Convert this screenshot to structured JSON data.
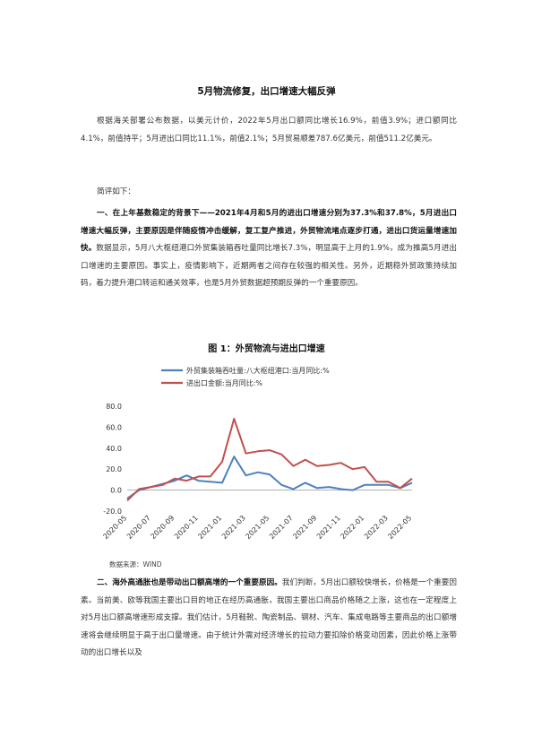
{
  "title": "5月物流修复，出口增速大幅反弹",
  "para1": "根据海关部署公布数据，以美元计价，2022年5月出口额同比增长16.9%，前值3.9%；进口额同比4.1%，前值持平；5月进出口同比11.1%，前值2.1%；5月贸易顺差787.6亿美元，前值511.2亿美元。",
  "para2": "简评如下：",
  "para3_bold": "一、在上年基数稳定的背景下——2021年4月和5月的进出口增速分别为37.3%和37.8%，5月进出口增速大幅反弹，主要原因是伴随疫情冲击缓解，复工复产推进，外贸物流堵点逐步打通，进出口货运量增速加快。",
  "para3_rest": "数据显示，5月八大枢纽港口外贸集装箱吞吐量同比增长7.3%，明显高于上月的1.9%，成为推高5月进出口增速的主要原因。事实上，疫情影响下，近期两者之间存在较强的相关性。另外，近期稳外贸政策持续加码，着力提升港口转运和通关效率，也是5月外贸数据超预期反弹的一个重要原因。",
  "figure_title": "图 1：外贸物流与进出口增速",
  "source": "数据来源：WIND",
  "para4_bold": "二、海外高通胀也是带动出口额高增的一个重要原因。",
  "para4_rest": "我们判断，5月出口额较快增长，价格是一个重要因素。当前美、欧等我国主要出口目的地正在经历高通胀，我国主要出口商品价格随之上涨，这也在一定程度上对5月出口额高增速形成支撑。我们估计，5月鞋靴、陶瓷制品、钢材、汽车、集成电路等主要商品的出口额增速将会继续明显于高于出口量增速。由于统计外需对经济增长的拉动力要扣除价格变动因素，因此价格上涨带动的出口增长以及",
  "chart_data": {
    "type": "line",
    "title": "",
    "xlabel": "",
    "ylabel": "",
    "ylim": [
      -20,
      80
    ],
    "yticks": [
      "-20.0",
      "0.0",
      "20.0",
      "40.0",
      "60.0",
      "80.0"
    ],
    "x": [
      "2020-05",
      "2020-06",
      "2020-07",
      "2020-08",
      "2020-09",
      "2020-10",
      "2020-11",
      "2020-12",
      "2021-01",
      "2021-02",
      "2021-03",
      "2021-04",
      "2021-05",
      "2021-06",
      "2021-07",
      "2021-08",
      "2021-09",
      "2021-10",
      "2021-11",
      "2021-12",
      "2022-01",
      "2022-02",
      "2022-03",
      "2022-04",
      "2022-05"
    ],
    "xticks": [
      "2020-05",
      "2020-07",
      "2020-09",
      "2020-11",
      "2021-01",
      "2021-03",
      "2021-05",
      "2021-07",
      "2021-09",
      "2021-11",
      "2022-01",
      "2022-03",
      "2022-05"
    ],
    "legend_position": "top-left",
    "grid": false,
    "series": [
      {
        "name": "外贸集装箱吞吐量:八大枢纽港口:当月同比:%",
        "color": "#4f81bd",
        "values": [
          -8,
          0,
          3,
          6,
          9,
          14,
          9,
          8,
          7,
          32,
          14,
          17,
          15,
          5,
          1,
          7,
          2,
          3,
          1,
          0,
          5,
          5,
          5,
          2,
          7
        ]
      },
      {
        "name": "进出口金额:当月同比:%",
        "color": "#c0504d",
        "values": [
          -10,
          1,
          3,
          5,
          11,
          9,
          13,
          13,
          27,
          68,
          35,
          37,
          38,
          34,
          23,
          29,
          23,
          24,
          26,
          20,
          22,
          8,
          8,
          2,
          11
        ]
      }
    ]
  }
}
